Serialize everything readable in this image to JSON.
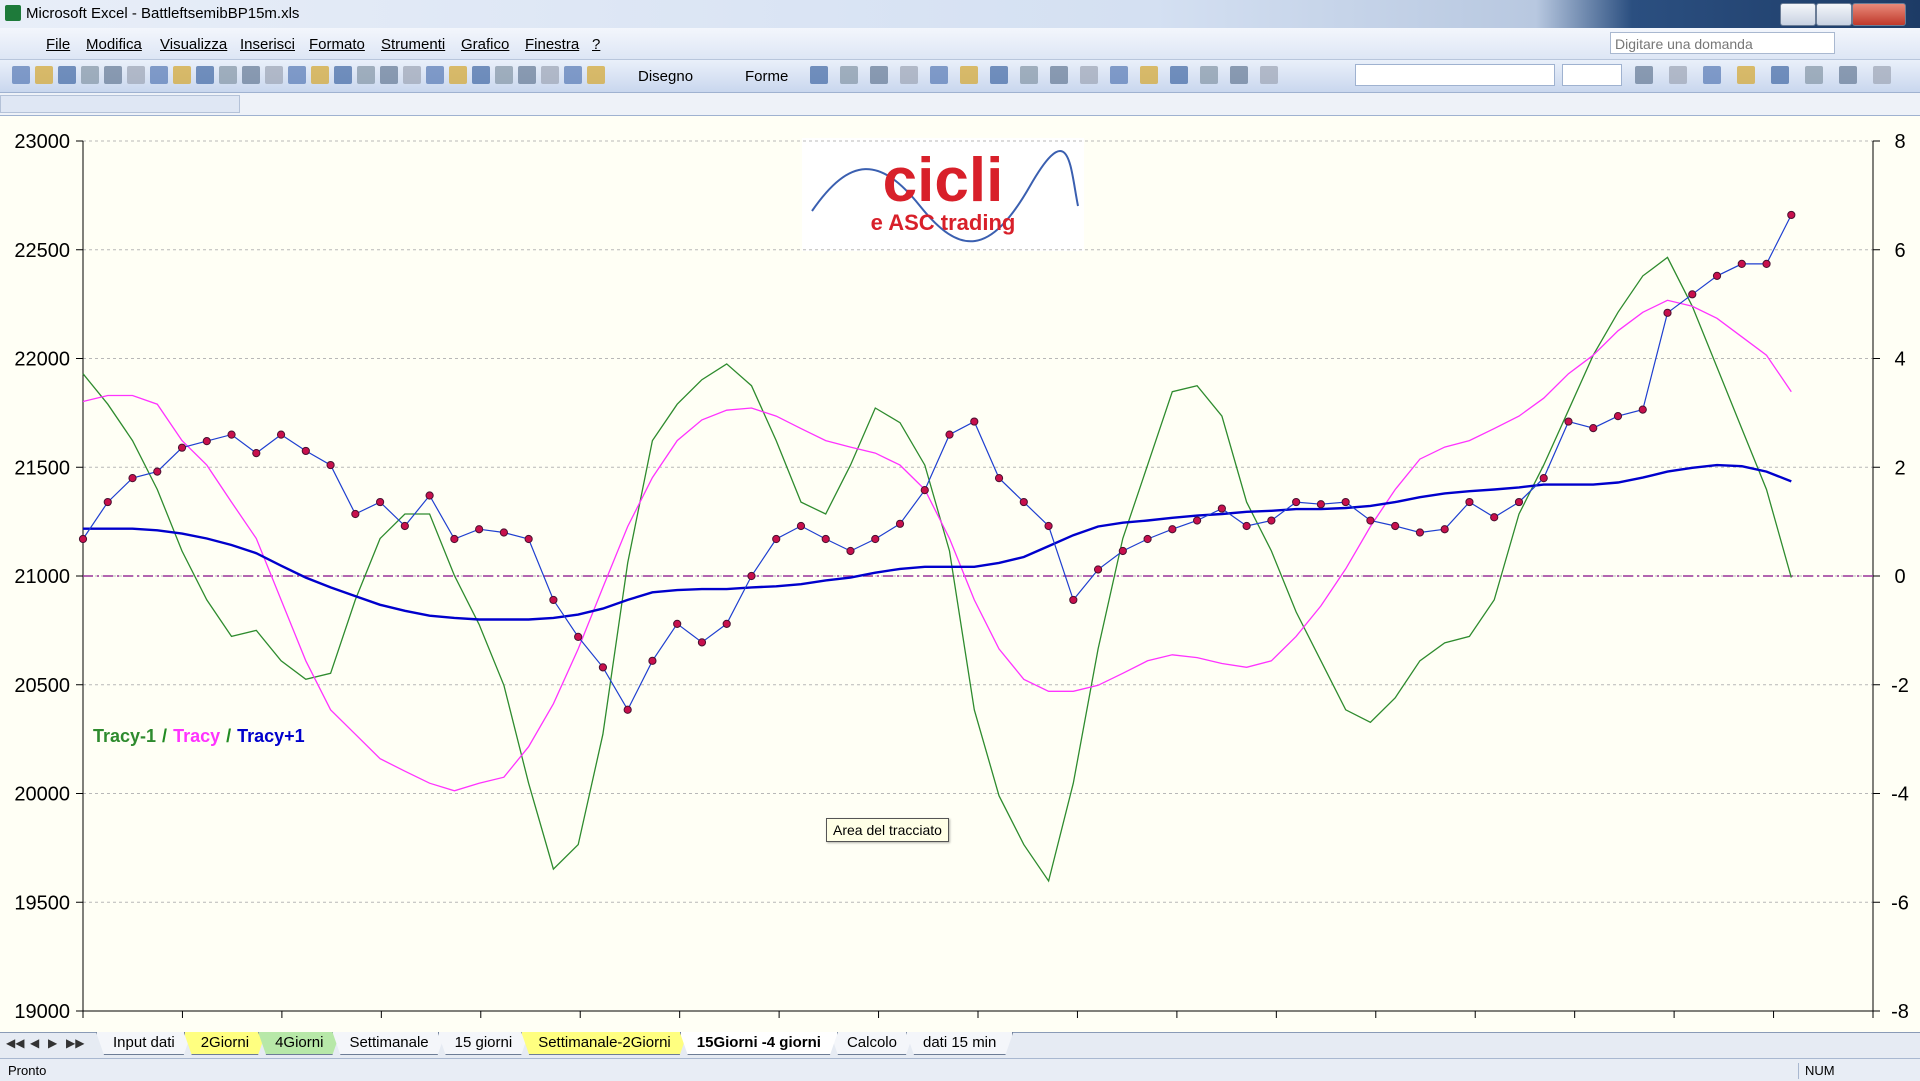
{
  "window": {
    "title": "Microsoft Excel - BattleftsemibBP15m.xls"
  },
  "menu": [
    "File",
    "Modifica",
    "Visualizza",
    "Inserisci",
    "Formato",
    "Strumenti",
    "Grafico",
    "Finestra",
    "?"
  ],
  "help_box": {
    "placeholder": "Digitare una domanda"
  },
  "toolbar": {
    "drawing": "Disegno",
    "shapes": "Forme"
  },
  "logo": {
    "title": "cicli",
    "subtitle": "e ASC trading"
  },
  "chart_data": {
    "type": "line",
    "x": [
      0,
      1,
      2,
      3,
      4,
      5,
      6,
      7,
      8,
      9,
      10,
      11,
      12,
      13,
      14,
      15,
      16,
      17,
      18,
      19,
      20,
      21,
      22,
      23,
      24,
      25,
      26,
      27,
      28,
      29,
      30,
      31,
      32,
      33,
      34,
      35,
      36,
      37,
      38,
      39,
      40,
      41,
      42,
      43,
      44,
      45,
      46,
      47,
      48,
      49,
      50,
      51,
      52,
      53,
      54,
      55,
      56,
      57,
      58,
      59,
      60,
      61,
      62,
      63,
      64,
      65,
      66,
      67,
      68,
      69
    ],
    "xlim": [
      0,
      72.3
    ],
    "ylim": [
      19000,
      23000
    ],
    "yticks": [
      19000,
      19500,
      20000,
      20500,
      21000,
      21500,
      22000,
      22500,
      23000
    ],
    "y2lim": [
      -8,
      8
    ],
    "y2ticks": [
      -8,
      -6,
      -4,
      -2,
      0,
      2,
      4,
      6,
      8
    ],
    "grid": true,
    "ref_line": {
      "axis": "y2",
      "value": 0,
      "color": "#993399"
    },
    "legend_separator": "/",
    "legend_separator_color": "#228b22",
    "series": [
      {
        "name": "Tracy-1",
        "color": "#2e8b2e",
        "axis": "y2",
        "width": 1.3,
        "values": [
          3.72,
          3.16,
          2.49,
          1.59,
          0.46,
          -0.44,
          -1.11,
          -1.0,
          -1.56,
          -1.9,
          -1.79,
          -0.44,
          0.69,
          1.14,
          1.14,
          0.01,
          -0.89,
          -2.01,
          -3.81,
          -5.39,
          -4.94,
          -2.91,
          0.24,
          2.49,
          3.16,
          3.61,
          3.9,
          3.5,
          2.49,
          1.36,
          1.14,
          2.04,
          3.09,
          2.82,
          2.04,
          0.46,
          -2.46,
          -4.04,
          -4.94,
          -5.61,
          -3.81,
          -1.34,
          0.69,
          2.04,
          3.39,
          3.5,
          2.94,
          1.36,
          0.46,
          -0.66,
          -1.56,
          -2.46,
          -2.69,
          -2.24,
          -1.56,
          -1.23,
          -1.11,
          -0.44,
          1.14,
          2.04,
          3.05,
          4.06,
          4.85,
          5.52,
          5.86,
          4.96,
          3.84,
          2.71,
          1.59,
          -0.03
        ]
      },
      {
        "name": "Tracy",
        "color": "#ff33ff",
        "axis": "y2",
        "width": 1.3,
        "values": [
          3.21,
          3.32,
          3.32,
          3.16,
          2.49,
          2.04,
          1.36,
          0.69,
          -0.44,
          -1.56,
          -2.46,
          -2.91,
          -3.36,
          -3.59,
          -3.81,
          -3.95,
          -3.81,
          -3.7,
          -3.14,
          -2.35,
          -1.34,
          -0.21,
          0.91,
          1.81,
          2.49,
          2.87,
          3.05,
          3.09,
          2.94,
          2.71,
          2.49,
          2.37,
          2.26,
          2.04,
          1.59,
          0.69,
          -0.44,
          -1.34,
          -1.9,
          -2.12,
          -2.12,
          -2.01,
          -1.79,
          -1.56,
          -1.45,
          -1.5,
          -1.61,
          -1.68,
          -1.56,
          -1.11,
          -0.55,
          0.13,
          0.91,
          1.59,
          2.15,
          2.37,
          2.49,
          2.71,
          2.94,
          3.27,
          3.72,
          4.06,
          4.51,
          4.85,
          5.07,
          4.96,
          4.74,
          4.4,
          4.06,
          3.39
        ]
      },
      {
        "name": "Tracy+1",
        "color": "#0000cc",
        "axis": "y2",
        "width": 2.4,
        "values": [
          0.87,
          0.87,
          0.87,
          0.84,
          0.78,
          0.69,
          0.57,
          0.42,
          0.19,
          -0.03,
          -0.21,
          -0.37,
          -0.53,
          -0.64,
          -0.73,
          -0.77,
          -0.8,
          -0.8,
          -0.8,
          -0.77,
          -0.71,
          -0.6,
          -0.44,
          -0.3,
          -0.26,
          -0.24,
          -0.24,
          -0.21,
          -0.19,
          -0.15,
          -0.08,
          -0.03,
          0.06,
          0.13,
          0.17,
          0.17,
          0.17,
          0.24,
          0.35,
          0.55,
          0.75,
          0.91,
          0.98,
          1.02,
          1.07,
          1.11,
          1.14,
          1.18,
          1.2,
          1.23,
          1.23,
          1.25,
          1.29,
          1.36,
          1.45,
          1.52,
          1.56,
          1.59,
          1.63,
          1.68,
          1.68,
          1.68,
          1.72,
          1.81,
          1.92,
          1.99,
          2.04,
          2.02,
          1.92,
          1.74
        ]
      },
      {
        "color": "#1f3fd0",
        "marker_color": "#c8104c",
        "axis": "y",
        "width": 1.2,
        "values": [
          21170,
          21340,
          21450,
          21480,
          21590,
          21620,
          21650,
          21565,
          21650,
          21575,
          21510,
          21285,
          21340,
          21230,
          21370,
          21170,
          21215,
          21200,
          21170,
          20890,
          20720,
          20580,
          20385,
          20610,
          20780,
          20695,
          20780,
          21000,
          21170,
          21230,
          21170,
          21115,
          21170,
          21240,
          21395,
          21650,
          21710,
          21450,
          21340,
          21230,
          20890,
          21030,
          21115,
          21170,
          21215,
          21255,
          21310,
          21230,
          21255,
          21340,
          21330,
          21340,
          21255,
          21230,
          21200,
          21215,
          21340,
          21270,
          21340,
          21450,
          21710,
          21680,
          21735,
          21765,
          22210,
          22295,
          22380,
          22435,
          22435,
          22660
        ]
      }
    ]
  },
  "tooltip": "Area del tracciato",
  "sheet_tabs": [
    {
      "label": "Input dati"
    },
    {
      "label": "2Giorni",
      "color": "#ffff80"
    },
    {
      "label": "4Giorni",
      "color": "#b7e8a8"
    },
    {
      "label": "Settimanale"
    },
    {
      "label": "15 giorni"
    },
    {
      "label": "Settimanale-2Giorni",
      "color": "#ffff80"
    },
    {
      "label": "15Giorni -4 giorni",
      "active": true
    },
    {
      "label": "Calcolo"
    },
    {
      "label": "dati 15 min"
    }
  ],
  "status": {
    "left": "Pronto",
    "num": "NUM"
  }
}
